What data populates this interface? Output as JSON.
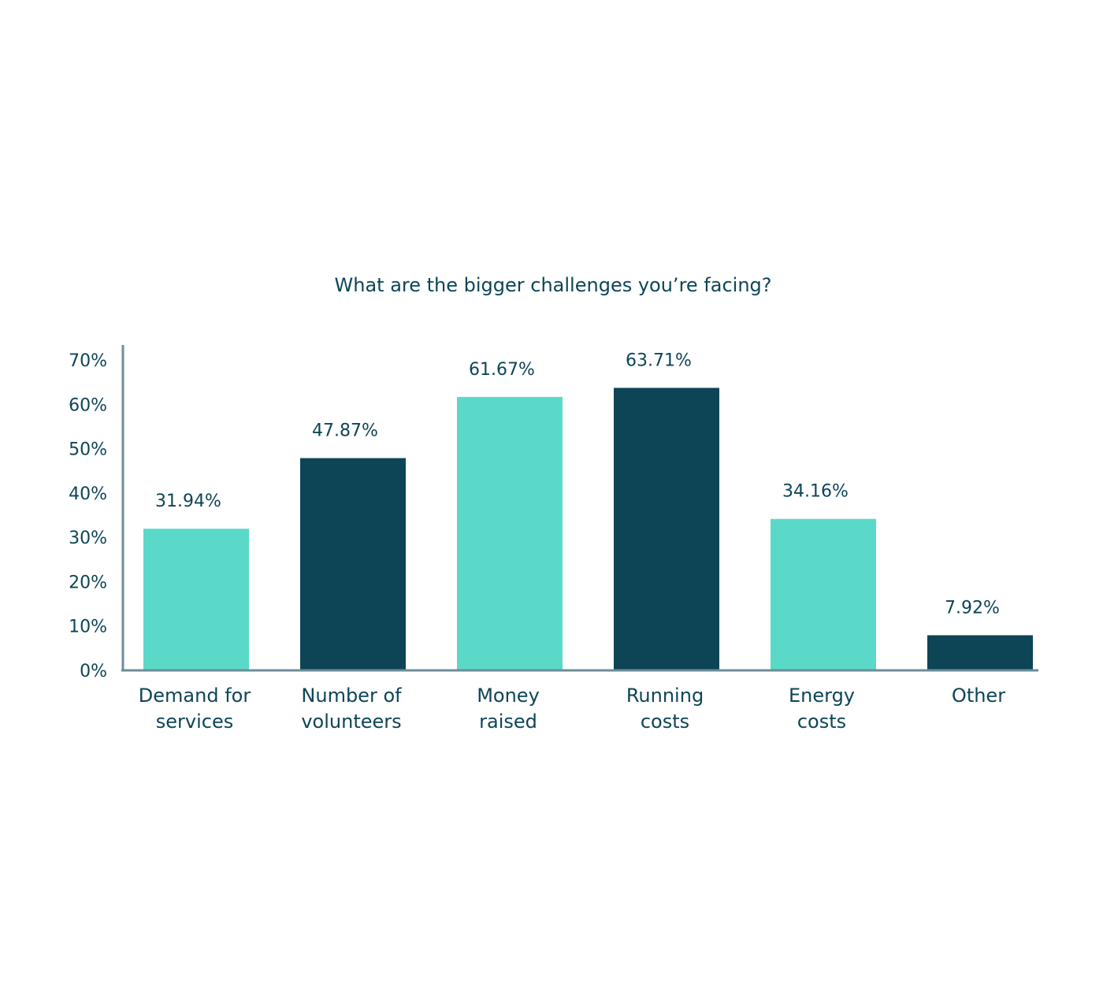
{
  "chart_data": {
    "type": "bar",
    "title": "What are the bigger challenges you’re facing?",
    "categories": [
      [
        "Demand for",
        "services"
      ],
      [
        "Number of",
        "volunteers"
      ],
      [
        "Money",
        "raised"
      ],
      [
        "Running",
        "costs"
      ],
      [
        "Energy",
        "costs"
      ],
      [
        "Other"
      ]
    ],
    "values": [
      31.94,
      47.87,
      61.67,
      63.71,
      34.16,
      7.92
    ],
    "value_labels": [
      "31.94%",
      "47.87%",
      "61.67%",
      "63.71%",
      "34.16%",
      "7.92%"
    ],
    "ylim": [
      0,
      70
    ],
    "yticks": [
      0,
      10,
      20,
      30,
      40,
      50,
      60,
      70
    ],
    "ytick_labels": [
      "0%",
      "10%",
      "20%",
      "30%",
      "40%",
      "50%",
      "60%",
      "70%"
    ],
    "xlabel": "",
    "ylabel": "",
    "grid": false,
    "legend": "none",
    "colors": {
      "bar_light": "#5ad9c8",
      "bar_dark": "#0d4556",
      "axis": "#6b8e97",
      "text": "#0d4556"
    },
    "bar_colors": [
      "light",
      "dark",
      "light",
      "dark",
      "light",
      "dark"
    ]
  }
}
